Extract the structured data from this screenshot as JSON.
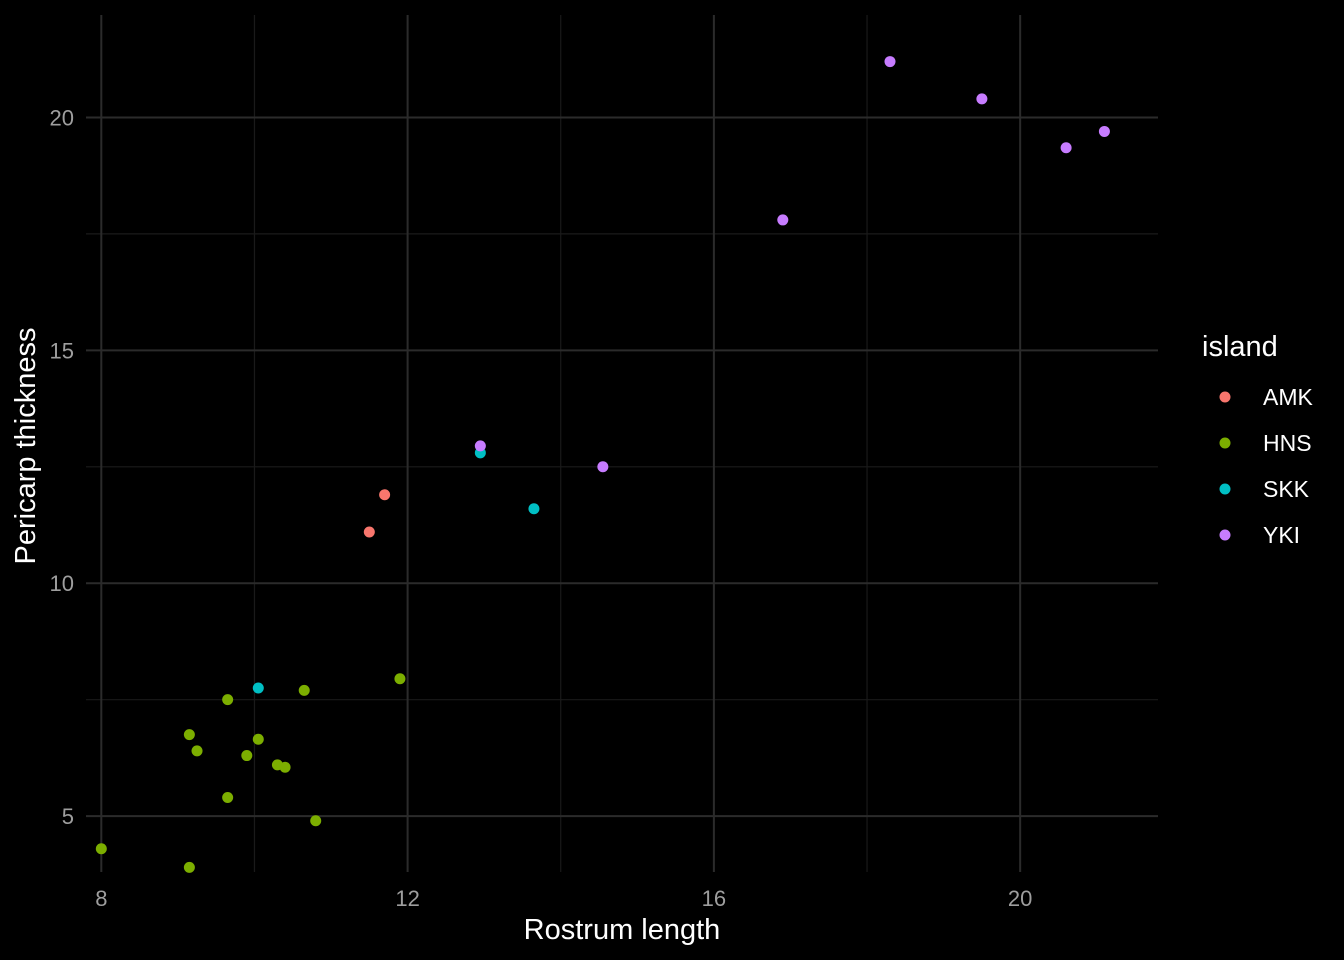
{
  "chart_data": {
    "type": "scatter",
    "title": "",
    "xlabel": "Rostrum length",
    "ylabel": "Pericarp thickness",
    "xlim": [
      7.8,
      21.8
    ],
    "ylim": [
      3.8,
      22.2
    ],
    "x_ticks": [
      8,
      12,
      16,
      20
    ],
    "y_ticks": [
      5,
      10,
      15,
      20
    ],
    "x_tick_labels": [
      "8",
      "12",
      "16",
      "20"
    ],
    "y_tick_labels": [
      "5",
      "10",
      "15",
      "20"
    ],
    "grid": true,
    "legend": {
      "title": "island",
      "placement": "right"
    },
    "series": [
      {
        "name": "AMK",
        "color": "#F8766D",
        "points": [
          {
            "x": 11.5,
            "y": 11.1
          },
          {
            "x": 11.7,
            "y": 11.9
          }
        ]
      },
      {
        "name": "HNS",
        "color": "#7CAE00",
        "points": [
          {
            "x": 8.0,
            "y": 4.3
          },
          {
            "x": 9.15,
            "y": 3.9
          },
          {
            "x": 9.15,
            "y": 6.75
          },
          {
            "x": 9.25,
            "y": 6.4
          },
          {
            "x": 9.65,
            "y": 7.5
          },
          {
            "x": 9.65,
            "y": 5.4
          },
          {
            "x": 9.9,
            "y": 6.3
          },
          {
            "x": 10.05,
            "y": 6.65
          },
          {
            "x": 10.3,
            "y": 6.1
          },
          {
            "x": 10.4,
            "y": 6.05
          },
          {
            "x": 10.65,
            "y": 7.7
          },
          {
            "x": 10.8,
            "y": 4.9
          },
          {
            "x": 11.9,
            "y": 7.95
          }
        ]
      },
      {
        "name": "SKK",
        "color": "#00BFC4",
        "points": [
          {
            "x": 10.05,
            "y": 7.75
          },
          {
            "x": 12.95,
            "y": 12.8
          },
          {
            "x": 13.65,
            "y": 11.6
          }
        ]
      },
      {
        "name": "YKI",
        "color": "#C77CFF",
        "points": [
          {
            "x": 12.95,
            "y": 12.95
          },
          {
            "x": 14.55,
            "y": 12.5
          },
          {
            "x": 16.9,
            "y": 17.8
          },
          {
            "x": 18.3,
            "y": 21.2
          },
          {
            "x": 19.5,
            "y": 20.4
          },
          {
            "x": 20.6,
            "y": 19.35
          },
          {
            "x": 21.1,
            "y": 19.7
          }
        ]
      }
    ]
  }
}
